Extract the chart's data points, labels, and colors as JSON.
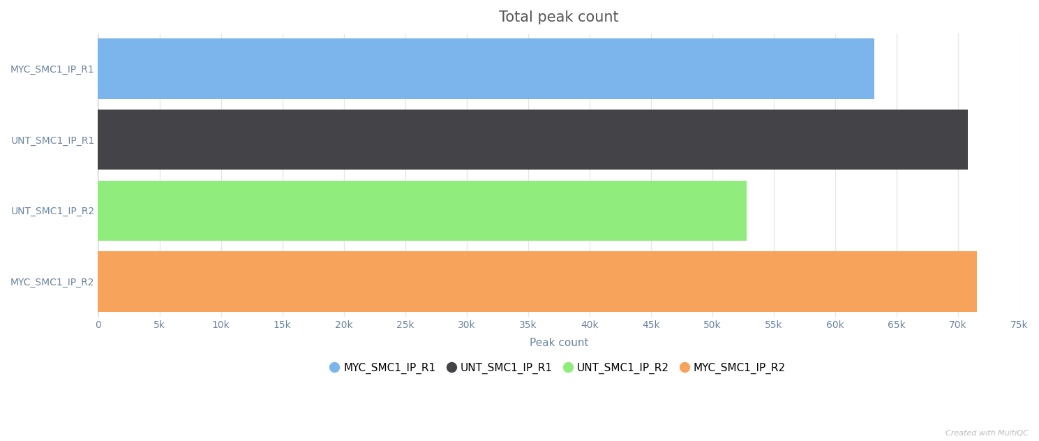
{
  "categories": [
    "MYC_SMC1_IP_R1",
    "UNT_SMC1_IP_R1",
    "UNT_SMC1_IP_R2",
    "MYC_SMC1_IP_R2"
  ],
  "values": [
    63200,
    70800,
    52800,
    71500
  ],
  "bar_colors": [
    "#7cb5ec",
    "#434348",
    "#90ed7d",
    "#f7a35c"
  ],
  "title": "Total peak count",
  "xlabel": "Peak count",
  "xlim": [
    0,
    75000
  ],
  "xticks": [
    0,
    5000,
    10000,
    15000,
    20000,
    25000,
    30000,
    35000,
    40000,
    45000,
    50000,
    55000,
    60000,
    65000,
    70000,
    75000
  ],
  "title_fontsize": 15,
  "label_fontsize": 11,
  "tick_fontsize": 10,
  "background_color": "#ffffff",
  "plot_bg_color": "#ffffff",
  "grid_color": "#e6e6e6",
  "ytick_color": "#6c85a0",
  "xtick_color": "#6c85a0",
  "legend_labels": [
    "MYC_SMC1_IP_R1",
    "UNT_SMC1_IP_R1",
    "UNT_SMC1_IP_R2",
    "MYC_SMC1_IP_R2"
  ],
  "watermark": "Created with MultiQC",
  "title_color": "#555555"
}
